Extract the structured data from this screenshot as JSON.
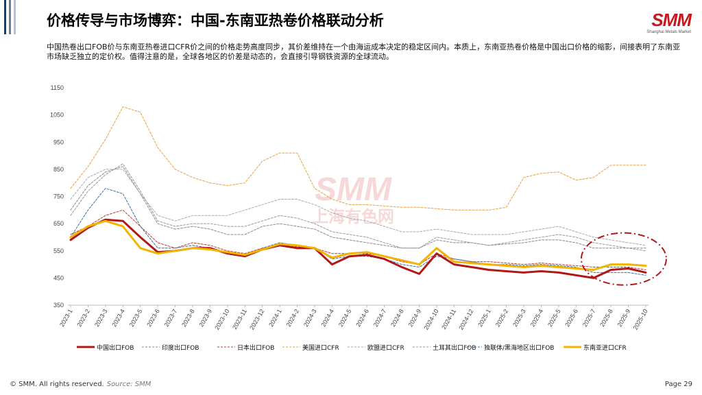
{
  "slide": {
    "title": "价格传导与市场博弈：中国-东南亚热卷价格联动分析",
    "description": "中国热卷出口FOB价与东南亚热卷进口CFR价之间的价格走势高度同步，其价差维持在一个由海运成本决定的稳定区间内。本质上，东南亚热卷价格是中国出口价格的缩影，间接表明了东南亚市场缺乏独立的定价权。值得注意的是，全球各地区的价差是动态的，会直接引导钢铁资源的全球流动。",
    "logo_text": "SMM",
    "logo_subtext": "Shanghai Metals Market",
    "watermark_text": "SMM",
    "watermark_subtext": "上海有色网",
    "copyright": "© SMM. All rights reserved.",
    "source": "Source:  SMM",
    "page": "Page 29",
    "accent_color": "#c8161d",
    "sidebar_colors": [
      "#1f3a5f",
      "#6b7f99",
      "#b6c2d0"
    ]
  },
  "chart_data": {
    "type": "line",
    "title": "",
    "xlabel": "",
    "ylabel": "",
    "ylim": [
      350,
      1150
    ],
    "yticks": [
      350,
      450,
      550,
      650,
      750,
      850,
      950,
      1050,
      1150
    ],
    "x_categories": [
      "2023-1",
      "2023-2",
      "2023-3",
      "2023-4",
      "2023-5",
      "2023-6",
      "2023-7",
      "2023-8",
      "2023-9",
      "2023-10",
      "2023-11",
      "2023-12",
      "2024-1",
      "2024-2",
      "2024-3",
      "2024-4",
      "2024-5",
      "2024-6",
      "2024-7",
      "2024-8",
      "2024-9",
      "2024-10",
      "2024-11",
      "2024-12",
      "2025-1",
      "2025-2",
      "2025-3",
      "2025-4",
      "2025-5",
      "2025-6",
      "2025-7",
      "2025-8",
      "2025-9",
      "2025-10"
    ],
    "grid": false,
    "legend_position": "bottom",
    "annotation": "dashed ellipse highlighting 2025-7 to 2025-10",
    "series": [
      {
        "name": "中国出口FOB",
        "color": "#b01818",
        "style": "solid",
        "width": 3,
        "values": [
          590,
          635,
          665,
          660,
          600,
          545,
          550,
          560,
          560,
          540,
          530,
          555,
          570,
          560,
          560,
          500,
          530,
          535,
          520,
          490,
          465,
          540,
          500,
          490,
          480,
          475,
          470,
          475,
          470,
          460,
          450,
          480,
          485,
          470
        ]
      },
      {
        "name": "印度出口FOB",
        "color": "#888888",
        "style": "dashed",
        "width": 1,
        "values": [
          700,
          790,
          840,
          860,
          760,
          650,
          630,
          640,
          630,
          610,
          610,
          640,
          650,
          640,
          630,
          600,
          590,
          580,
          570,
          560,
          560,
          590,
          580,
          580,
          570,
          575,
          580,
          590,
          590,
          580,
          560,
          560,
          560,
          560
        ]
      },
      {
        "name": "日本出口FOB",
        "color": "#c0392b",
        "style": "dashed",
        "width": 1,
        "values": [
          610,
          640,
          680,
          700,
          640,
          580,
          560,
          580,
          570,
          550,
          540,
          560,
          570,
          565,
          560,
          540,
          540,
          540,
          530,
          510,
          500,
          540,
          520,
          510,
          510,
          505,
          500,
          505,
          500,
          495,
          490,
          490,
          490,
          480
        ]
      },
      {
        "name": "美国进口CFR",
        "color": "#e8a040",
        "style": "dashed",
        "width": 1,
        "values": [
          780,
          860,
          960,
          1080,
          1060,
          930,
          850,
          820,
          800,
          790,
          800,
          880,
          910,
          910,
          780,
          740,
          720,
          720,
          715,
          710,
          710,
          705,
          700,
          700,
          700,
          710,
          820,
          835,
          840,
          810,
          820,
          865,
          865,
          865
        ]
      },
      {
        "name": "欧盟进口CFR",
        "color": "#aaaaaa",
        "style": "dashed",
        "width": 1,
        "values": [
          740,
          820,
          850,
          850,
          760,
          680,
          660,
          680,
          680,
          680,
          700,
          720,
          740,
          740,
          720,
          690,
          670,
          660,
          640,
          620,
          620,
          630,
          620,
          610,
          610,
          610,
          620,
          630,
          640,
          620,
          600,
          590,
          580,
          570
        ]
      },
      {
        "name": "土耳其出口FOB",
        "color": "#999999",
        "style": "dashed",
        "width": 1,
        "values": [
          680,
          770,
          830,
          870,
          770,
          660,
          640,
          650,
          650,
          640,
          640,
          660,
          680,
          670,
          650,
          620,
          610,
          600,
          580,
          560,
          560,
          600,
          590,
          580,
          570,
          580,
          590,
          600,
          610,
          600,
          580,
          570,
          560,
          550
        ]
      },
      {
        "name": "独联体/黑海地区出口FOB",
        "color": "#3a6ea5",
        "style": "dashed",
        "width": 1,
        "values": [
          600,
          700,
          780,
          760,
          640,
          560,
          560,
          570,
          560,
          540,
          530,
          560,
          580,
          570,
          560,
          520,
          530,
          530,
          520,
          500,
          490,
          530,
          520,
          510,
          500,
          500,
          495,
          500,
          495,
          490,
          470,
          470,
          470,
          460
        ]
      },
      {
        "name": "东南亚进口CFR",
        "color": "#f2b400",
        "style": "solid",
        "width": 3,
        "values": [
          600,
          640,
          660,
          640,
          560,
          540,
          550,
          560,
          555,
          545,
          535,
          555,
          575,
          570,
          560,
          525,
          540,
          545,
          530,
          515,
          500,
          560,
          510,
          505,
          500,
          495,
          490,
          495,
          490,
          485,
          480,
          500,
          500,
          495
        ]
      }
    ]
  }
}
